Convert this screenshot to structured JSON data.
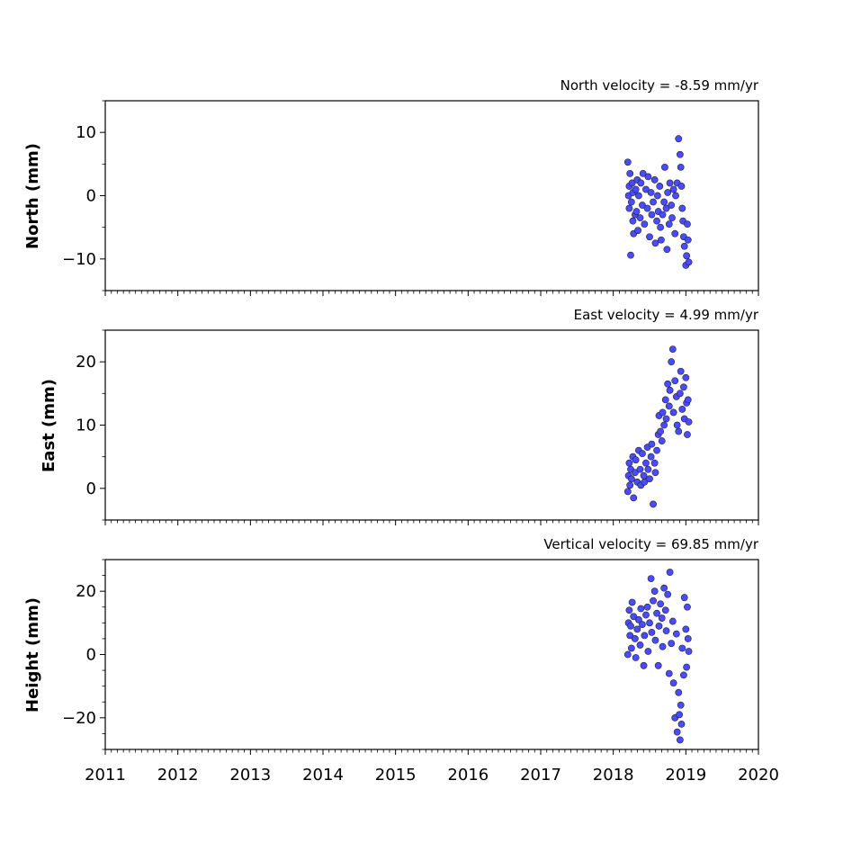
{
  "chart_data": [
    {
      "type": "scatter",
      "title": "North velocity = -8.59 mm/yr",
      "xlabel": "",
      "ylabel": "North (mm)",
      "xlim": [
        2011,
        2020
      ],
      "ylim": [
        -15,
        15
      ],
      "yticks": [
        10,
        0,
        -10
      ],
      "ytick_labels": [
        "10",
        "0",
        "−10"
      ],
      "color": "#4a4aff",
      "series": [
        {
          "x": [
            2018.2,
            2018.21,
            2018.22,
            2018.22,
            2018.23,
            2018.24,
            2018.25,
            2018.26,
            2018.27,
            2018.27,
            2018.28,
            2018.3,
            2018.31,
            2018.32,
            2018.33,
            2018.34,
            2018.35,
            2018.37,
            2018.38,
            2018.4,
            2018.41,
            2018.43,
            2018.45,
            2018.47,
            2018.48,
            2018.5,
            2018.52,
            2018.53,
            2018.55,
            2018.57,
            2018.58,
            2018.6,
            2018.61,
            2018.62,
            2018.64,
            2018.65,
            2018.66,
            2018.68,
            2018.7,
            2018.71,
            2018.73,
            2018.74,
            2018.75,
            2018.77,
            2018.78,
            2018.8,
            2018.81,
            2018.83,
            2018.85,
            2018.86,
            2018.88,
            2018.9,
            2018.92,
            2018.93,
            2018.94,
            2018.95,
            2018.96,
            2018.97,
            2018.98,
            2019.0,
            2019.01,
            2019.02,
            2019.03,
            2019.04
          ],
          "y": [
            5.3,
            0.0,
            -2.0,
            1.5,
            3.5,
            -9.4,
            -1.0,
            2.0,
            -4.0,
            0.5,
            -6.0,
            -3.0,
            1.0,
            -2.5,
            2.5,
            -5.5,
            0.0,
            -3.5,
            2.0,
            -1.5,
            3.5,
            -4.5,
            1.0,
            -2.0,
            3.0,
            -6.5,
            0.5,
            -3.0,
            -1.0,
            2.5,
            -7.5,
            -4.0,
            0.0,
            -2.5,
            1.5,
            -5.0,
            -7.0,
            -3.0,
            -1.0,
            4.5,
            -2.0,
            -8.5,
            0.5,
            -4.5,
            2.0,
            -1.5,
            -3.5,
            1.0,
            -6.0,
            0.0,
            2.0,
            9.0,
            6.5,
            4.5,
            1.5,
            -2.0,
            -4.0,
            -6.5,
            -8.0,
            -11.0,
            -9.5,
            -4.5,
            -7.0,
            -10.5
          ]
        }
      ]
    },
    {
      "type": "scatter",
      "title": "East velocity = 4.99 mm/yr",
      "xlabel": "",
      "ylabel": "East (mm)",
      "xlim": [
        2011,
        2020
      ],
      "ylim": [
        -5,
        25
      ],
      "yticks": [
        20,
        10,
        0
      ],
      "ytick_labels": [
        "20",
        "10",
        "0"
      ],
      "color": "#4a4aff",
      "series": [
        {
          "x": [
            2018.2,
            2018.21,
            2018.22,
            2018.23,
            2018.24,
            2018.25,
            2018.27,
            2018.28,
            2018.3,
            2018.31,
            2018.33,
            2018.35,
            2018.37,
            2018.38,
            2018.4,
            2018.42,
            2018.43,
            2018.45,
            2018.47,
            2018.48,
            2018.5,
            2018.52,
            2018.53,
            2018.55,
            2018.57,
            2018.58,
            2018.6,
            2018.62,
            2018.63,
            2018.65,
            2018.67,
            2018.68,
            2018.7,
            2018.72,
            2018.73,
            2018.75,
            2018.77,
            2018.78,
            2018.8,
            2018.82,
            2018.83,
            2018.85,
            2018.87,
            2018.88,
            2018.9,
            2018.92,
            2018.93,
            2018.95,
            2018.97,
            2018.98,
            2019.0,
            2019.01,
            2019.02,
            2019.03,
            2019.04
          ],
          "y": [
            -0.5,
            2.0,
            4.0,
            0.5,
            3.0,
            1.5,
            5.0,
            -1.5,
            2.5,
            4.5,
            1.0,
            6.0,
            3.0,
            0.5,
            5.5,
            2.0,
            1.0,
            4.0,
            6.5,
            3.0,
            1.5,
            5.0,
            7.0,
            -2.5,
            4.0,
            2.5,
            6.0,
            8.5,
            11.5,
            9.0,
            7.5,
            12.0,
            10.0,
            14.0,
            11.0,
            16.5,
            13.0,
            15.5,
            20.0,
            22.0,
            12.0,
            17.0,
            14.5,
            10.0,
            9.0,
            15.0,
            18.5,
            12.5,
            16.0,
            11.0,
            17.5,
            13.5,
            8.5,
            14.0,
            10.5
          ]
        }
      ]
    },
    {
      "type": "scatter",
      "title": "Vertical velocity = 69.85 mm/yr",
      "xlabel": "",
      "ylabel": "Height (mm)",
      "xlim": [
        2011,
        2020
      ],
      "ylim": [
        -30,
        30
      ],
      "yticks": [
        20,
        0,
        -20
      ],
      "ytick_labels": [
        "20",
        "0",
        "−20"
      ],
      "xticks": [
        2011,
        2012,
        2013,
        2014,
        2015,
        2016,
        2017,
        2018,
        2019,
        2020
      ],
      "xtick_labels": [
        "2011",
        "2012",
        "2013",
        "2014",
        "2015",
        "2016",
        "2017",
        "2018",
        "2019",
        "2020"
      ],
      "color": "#4a4aff",
      "series": [
        {
          "x": [
            2018.2,
            2018.21,
            2018.22,
            2018.23,
            2018.24,
            2018.25,
            2018.26,
            2018.28,
            2018.3,
            2018.31,
            2018.33,
            2018.35,
            2018.37,
            2018.38,
            2018.4,
            2018.42,
            2018.43,
            2018.45,
            2018.47,
            2018.48,
            2018.5,
            2018.52,
            2018.53,
            2018.55,
            2018.57,
            2018.58,
            2018.6,
            2018.62,
            2018.63,
            2018.65,
            2018.67,
            2018.68,
            2018.7,
            2018.72,
            2018.73,
            2018.75,
            2018.77,
            2018.78,
            2018.8,
            2018.82,
            2018.83,
            2018.85,
            2018.87,
            2018.88,
            2018.9,
            2018.91,
            2018.92,
            2018.93,
            2018.94,
            2018.95,
            2018.97,
            2018.98,
            2019.0,
            2019.01,
            2019.02,
            2019.03,
            2019.04
          ],
          "y": [
            0.0,
            10.0,
            14.0,
            6.0,
            9.0,
            2.0,
            16.5,
            12.0,
            5.0,
            -1.0,
            8.0,
            11.0,
            3.0,
            14.5,
            9.5,
            -3.5,
            6.0,
            12.5,
            15.0,
            1.0,
            10.0,
            24.0,
            7.0,
            17.0,
            20.0,
            4.5,
            13.0,
            -3.5,
            9.0,
            16.0,
            11.5,
            2.5,
            21.0,
            14.0,
            7.5,
            19.0,
            -6.0,
            26.0,
            3.5,
            10.5,
            -9.0,
            -20.0,
            6.5,
            -24.5,
            -12.0,
            -19.0,
            -27.0,
            -16.0,
            -22.0,
            2.0,
            -6.5,
            18.0,
            8.0,
            -4.0,
            15.0,
            5.0,
            1.0
          ]
        }
      ]
    }
  ]
}
